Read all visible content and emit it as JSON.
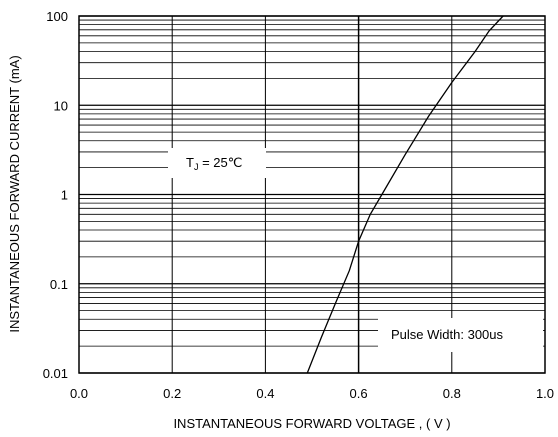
{
  "chart_data": {
    "type": "line",
    "xlabel": "INSTANTANEOUS FORWARD VOLTAGE , ( V )",
    "ylabel": "INSTANTANEOUS FORWARD CURRENT (mA)",
    "xlim": [
      0.0,
      1.0
    ],
    "ylim": [
      0.01,
      100
    ],
    "y_scale": "log",
    "grid": true,
    "x_ticks": [
      "0.0",
      "0.2",
      "0.4",
      "0.6",
      "0.8",
      "1.0"
    ],
    "y_ticks": [
      "0.01",
      "0.1",
      "1",
      "10",
      "100"
    ],
    "series": [
      {
        "x": [
          0.49,
          0.52,
          0.55,
          0.58,
          0.6,
          0.625,
          0.65,
          0.7,
          0.75,
          0.8,
          0.85,
          0.88,
          0.91
        ],
        "y": [
          0.01,
          0.025,
          0.06,
          0.14,
          0.3,
          0.6,
          1.0,
          2.8,
          7.5,
          18,
          40,
          68,
          100
        ]
      }
    ],
    "annotations": [
      {
        "main": "T",
        "sub": "J",
        "rest": " = 25℃"
      },
      {
        "main": "Pulse Width: 300us"
      }
    ]
  },
  "colors": {
    "grid": "#000000",
    "curve": "#000000",
    "background": "#ffffff"
  }
}
